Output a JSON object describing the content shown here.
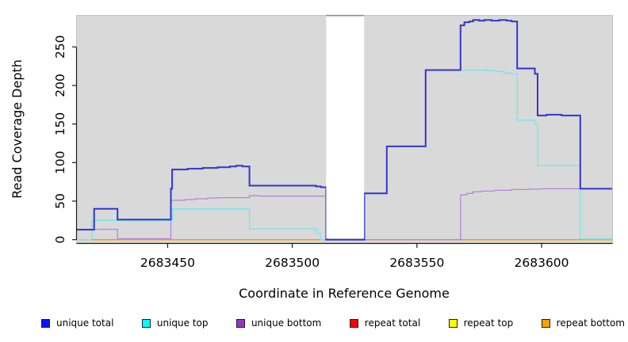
{
  "figure": {
    "background": "#ffffff",
    "plot_background": "#d9d9d9",
    "frame_color": "#c2c2c2",
    "axis_color": "#1a1a1a",
    "gap_top_border_color": "#8f8f8f"
  },
  "axes": {
    "x_title": "Coordinate in Reference Genome",
    "y_title": "Read Coverage Depth",
    "x_ticks": [
      2683450,
      2683500,
      2683550,
      2683600
    ],
    "y_ticks": [
      0,
      50,
      100,
      150,
      200,
      250
    ]
  },
  "legend": {
    "items": [
      {
        "label": "unique total",
        "color": "#1010ff"
      },
      {
        "label": "unique top",
        "color": "#00ffff"
      },
      {
        "label": "unique bottom",
        "color": "#9933cc"
      },
      {
        "label": "repeat total",
        "color": "#ff0000"
      },
      {
        "label": "repeat top",
        "color": "#ffff00"
      },
      {
        "label": "repeat bottom",
        "color": "#ffa000"
      }
    ]
  },
  "chart_data": {
    "type": "line",
    "step": true,
    "title": "",
    "xlabel": "Coordinate in Reference Genome",
    "ylabel": "Read Coverage Depth",
    "xlim": [
      2683413.6,
      2683628.3
    ],
    "ylim": [
      -4.4,
      290.3
    ],
    "grid": false,
    "legend_position": "bottom",
    "gap_region": {
      "x_start": 2683513.6,
      "x_end": 2683528.8,
      "note": "white masked band; all series drop to 0"
    },
    "draw_order": [
      "repeat total",
      "repeat top",
      "repeat bottom",
      "unique bottom",
      "unique top",
      "unique total"
    ],
    "series": [
      {
        "name": "unique total",
        "color": "#3434cf",
        "line_width": 2,
        "points": [
          [
            2683413.6,
            13
          ],
          [
            2683420.5,
            40
          ],
          [
            2683429.9,
            26
          ],
          [
            2683451.3,
            66
          ],
          [
            2683451.8,
            91
          ],
          [
            2683458,
            92
          ],
          [
            2683464,
            93
          ],
          [
            2683470,
            94
          ],
          [
            2683475,
            95
          ],
          [
            2683477.5,
            96
          ],
          [
            2683480,
            95
          ],
          [
            2683482.8,
            70
          ],
          [
            2683509.5,
            69
          ],
          [
            2683511.5,
            68
          ],
          [
            2683513.6,
            0
          ],
          [
            2683528.9,
            60
          ],
          [
            2683537.9,
            121
          ],
          [
            2683553.5,
            220
          ],
          [
            2683567.5,
            278
          ],
          [
            2683569,
            282
          ],
          [
            2683571,
            283
          ],
          [
            2683572.5,
            285
          ],
          [
            2683575,
            284
          ],
          [
            2683577,
            285
          ],
          [
            2683580,
            284
          ],
          [
            2683583,
            285
          ],
          [
            2683586,
            284
          ],
          [
            2683588,
            283
          ],
          [
            2683590.2,
            222
          ],
          [
            2683597.3,
            215
          ],
          [
            2683598.4,
            161
          ],
          [
            2683602,
            162
          ],
          [
            2683608,
            161
          ],
          [
            2683615.5,
            66
          ],
          [
            2683628.3,
            66
          ]
        ]
      },
      {
        "name": "unique top",
        "color": "#6fe8ec",
        "line_width": 1.3,
        "points": [
          [
            2683413.6,
            0
          ],
          [
            2683419.6,
            25
          ],
          [
            2683452,
            40
          ],
          [
            2683482.8,
            14
          ],
          [
            2683509.8,
            8
          ],
          [
            2683511.3,
            0
          ],
          [
            2683528.9,
            60
          ],
          [
            2683537.9,
            121
          ],
          [
            2683553.5,
            220
          ],
          [
            2683578,
            219
          ],
          [
            2683582,
            218
          ],
          [
            2683585,
            216
          ],
          [
            2683587.5,
            215
          ],
          [
            2683590.2,
            155
          ],
          [
            2683597.3,
            150
          ],
          [
            2683598.4,
            96
          ],
          [
            2683615.5,
            0.8
          ],
          [
            2683628.3,
            0.8
          ]
        ]
      },
      {
        "name": "unique bottom",
        "color": "#b583dd",
        "line_width": 1.3,
        "points": [
          [
            2683413.6,
            13.5
          ],
          [
            2683429.9,
            1.2
          ],
          [
            2683451.3,
            51
          ],
          [
            2683457,
            52
          ],
          [
            2683461,
            53
          ],
          [
            2683466,
            54
          ],
          [
            2683470,
            54.5
          ],
          [
            2683482.8,
            57
          ],
          [
            2683487,
            56.5
          ],
          [
            2683513.6,
            0
          ],
          [
            2683567.5,
            58
          ],
          [
            2683570,
            60
          ],
          [
            2683572.5,
            62
          ],
          [
            2683576,
            63
          ],
          [
            2683581,
            64
          ],
          [
            2683588,
            65
          ],
          [
            2683595,
            65.5
          ],
          [
            2683600,
            66
          ],
          [
            2683628.3,
            66
          ]
        ]
      },
      {
        "name": "repeat total",
        "color": "#d04060",
        "line_width": 1.2,
        "points": [
          [
            2683413.6,
            0
          ],
          [
            2683628.3,
            0
          ]
        ]
      },
      {
        "name": "repeat top",
        "color": "#f0e030",
        "line_width": 1.2,
        "points": [
          [
            2683413.6,
            0
          ],
          [
            2683628.3,
            0
          ]
        ]
      },
      {
        "name": "repeat bottom",
        "color": "#ff9c00",
        "line_width": 1.5,
        "points": [
          [
            2683413.6,
            0
          ],
          [
            2683628.3,
            0
          ]
        ]
      }
    ]
  }
}
